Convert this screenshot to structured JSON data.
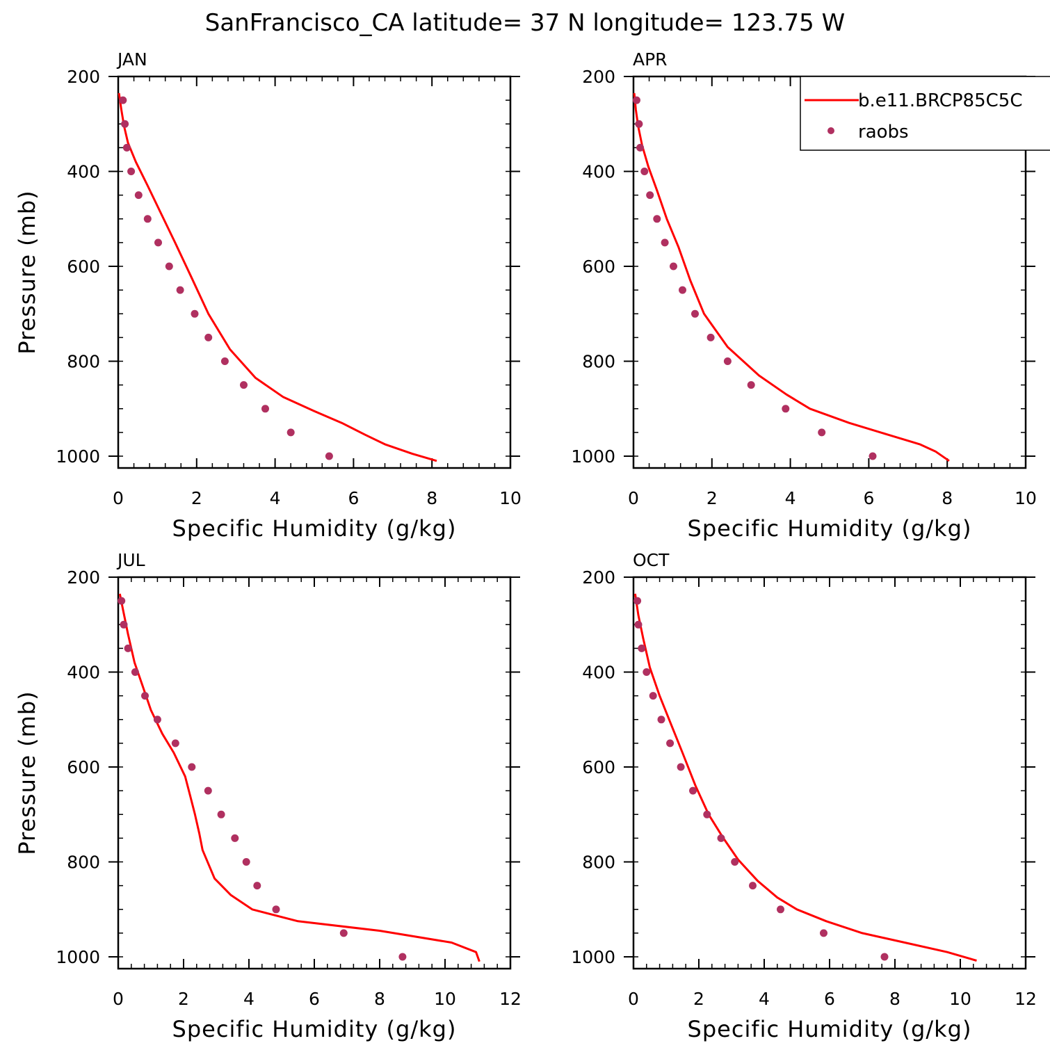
{
  "figure": {
    "title": "SanFrancisco_CA  latitude= 37 N longitude= 123.75 W"
  },
  "colors": {
    "model_line": "#ff0000",
    "obs_marker": "#b03060",
    "axes": "#000000"
  },
  "legend": {
    "placement": "top-right of APR panel",
    "model_label": "b.e11.BRCP85C5C",
    "obs_label": "raobs"
  },
  "chart_data": [
    {
      "type": "line",
      "panel": "JAN",
      "title": "JAN",
      "xlabel": "Specific Humidity (g/kg)",
      "ylabel": "Pressure (mb)",
      "xlim": [
        0,
        10
      ],
      "ylim": [
        1025,
        200
      ],
      "xticks": [
        0,
        2,
        4,
        6,
        8,
        10
      ],
      "yticks": [
        200,
        400,
        600,
        800,
        1000
      ],
      "series": [
        {
          "kind": "line",
          "x": [
            0.02,
            0.08,
            0.15,
            0.25,
            0.45,
            0.75,
            1.1,
            1.45,
            1.85,
            2.3,
            2.85,
            3.5,
            4.2,
            5.0,
            5.7,
            6.3,
            6.8,
            7.5,
            8.12
          ],
          "y": [
            235,
            270,
            305,
            340,
            380,
            430,
            490,
            550,
            620,
            700,
            775,
            835,
            875,
            905,
            930,
            955,
            975,
            995,
            1010
          ]
        },
        {
          "kind": "scatter",
          "x": [
            0.12,
            0.17,
            0.22,
            0.33,
            0.52,
            0.75,
            1.02,
            1.3,
            1.58,
            1.95,
            2.3,
            2.72,
            3.2,
            3.75,
            4.4,
            5.38
          ],
          "y": [
            250,
            300,
            350,
            400,
            450,
            500,
            550,
            600,
            650,
            700,
            750,
            800,
            850,
            900,
            950,
            1000
          ]
        }
      ]
    },
    {
      "type": "line",
      "panel": "APR",
      "title": "APR",
      "xlabel": "Specific Humidity (g/kg)",
      "ylabel": "",
      "xlim": [
        0,
        10
      ],
      "ylim": [
        1025,
        200
      ],
      "xticks": [
        0,
        2,
        4,
        6,
        8,
        10
      ],
      "yticks": [
        200,
        400,
        600,
        800,
        1000
      ],
      "series": [
        {
          "kind": "line",
          "x": [
            0.02,
            0.06,
            0.12,
            0.22,
            0.38,
            0.6,
            0.85,
            1.15,
            1.45,
            1.8,
            2.4,
            3.2,
            3.9,
            4.5,
            5.5,
            6.5,
            7.3,
            7.7,
            8.05
          ],
          "y": [
            235,
            270,
            305,
            345,
            390,
            440,
            500,
            560,
            630,
            700,
            770,
            830,
            870,
            900,
            930,
            955,
            975,
            990,
            1010
          ]
        },
        {
          "kind": "scatter",
          "x": [
            0.08,
            0.14,
            0.17,
            0.28,
            0.42,
            0.6,
            0.8,
            1.02,
            1.25,
            1.57,
            1.97,
            2.4,
            3.0,
            3.88,
            4.8,
            6.1
          ],
          "y": [
            250,
            300,
            350,
            400,
            450,
            500,
            550,
            600,
            650,
            700,
            750,
            800,
            850,
            900,
            950,
            1000
          ]
        }
      ]
    },
    {
      "type": "line",
      "panel": "JUL",
      "title": "JUL",
      "xlabel": "Specific Humidity (g/kg)",
      "ylabel": "Pressure (mb)",
      "xlim": [
        0,
        12
      ],
      "ylim": [
        1025,
        200
      ],
      "xticks": [
        0,
        2,
        4,
        6,
        8,
        10,
        12
      ],
      "yticks": [
        200,
        400,
        600,
        800,
        1000
      ],
      "series": [
        {
          "kind": "line",
          "x": [
            0.05,
            0.15,
            0.3,
            0.5,
            0.75,
            1.0,
            1.35,
            1.7,
            2.05,
            2.2,
            2.35,
            2.48,
            2.58,
            2.95,
            3.45,
            4.1,
            5.5,
            8.0,
            10.2,
            10.95,
            11.05
          ],
          "y": [
            235,
            270,
            320,
            380,
            430,
            480,
            530,
            570,
            620,
            660,
            700,
            740,
            775,
            835,
            870,
            900,
            925,
            945,
            970,
            990,
            1010
          ]
        },
        {
          "kind": "scatter",
          "x": [
            0.1,
            0.17,
            0.3,
            0.52,
            0.82,
            1.2,
            1.75,
            2.25,
            2.75,
            3.15,
            3.57,
            3.92,
            4.25,
            4.83,
            6.9,
            8.7
          ],
          "y": [
            250,
            300,
            350,
            400,
            450,
            500,
            550,
            600,
            650,
            700,
            750,
            800,
            850,
            900,
            950,
            1000
          ]
        }
      ]
    },
    {
      "type": "line",
      "panel": "OCT",
      "title": "OCT",
      "xlabel": "Specific Humidity (g/kg)",
      "ylabel": "",
      "xlim": [
        0,
        12
      ],
      "ylim": [
        1025,
        200
      ],
      "xticks": [
        0,
        2,
        4,
        6,
        8,
        10,
        12
      ],
      "yticks": [
        200,
        400,
        600,
        800,
        1000
      ],
      "series": [
        {
          "kind": "line",
          "x": [
            0.05,
            0.15,
            0.3,
            0.5,
            0.8,
            1.15,
            1.5,
            1.9,
            2.3,
            2.75,
            3.2,
            3.8,
            4.4,
            5.0,
            5.9,
            7.0,
            8.3,
            9.6,
            10.5
          ],
          "y": [
            235,
            280,
            330,
            390,
            450,
            510,
            570,
            640,
            700,
            750,
            795,
            840,
            875,
            900,
            925,
            950,
            970,
            990,
            1008
          ]
        },
        {
          "kind": "scatter",
          "x": [
            0.12,
            0.15,
            0.25,
            0.4,
            0.6,
            0.85,
            1.12,
            1.45,
            1.82,
            2.25,
            2.68,
            3.1,
            3.65,
            4.5,
            5.82,
            7.68
          ],
          "y": [
            250,
            300,
            350,
            400,
            450,
            500,
            550,
            600,
            650,
            700,
            750,
            800,
            850,
            900,
            950,
            1000
          ]
        }
      ]
    }
  ]
}
